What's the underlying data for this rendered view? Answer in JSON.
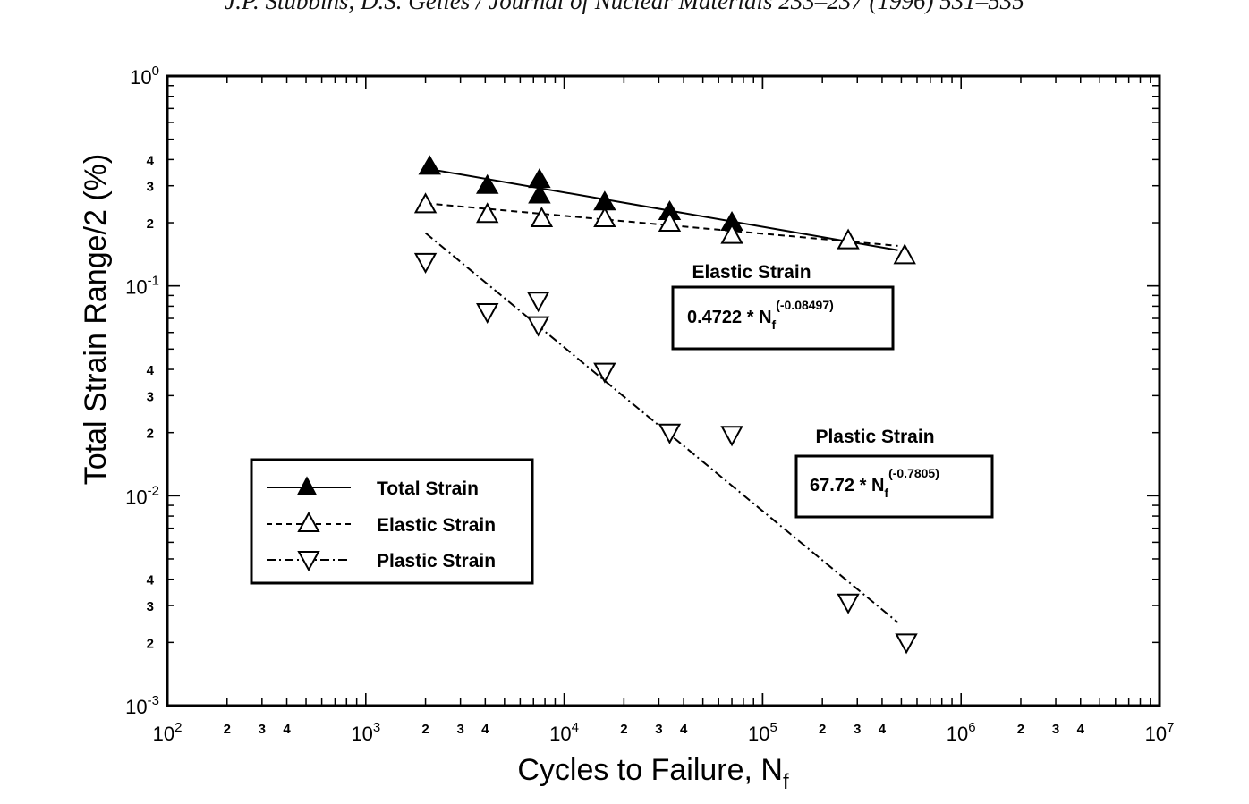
{
  "header": "J.P. Stubbins, D.S. Gelles / Journal of Nuclear Materials 233–237 (1996) 531–535",
  "chart_data": {
    "type": "scatter",
    "xlabel_main": "Cycles to Failure, N",
    "xlabel_sub": "f",
    "ylabel": "Total Strain Range/2 (%)",
    "xscale": "log",
    "yscale": "log",
    "xlim": [
      100,
      10000000
    ],
    "ylim": [
      0.001,
      1
    ],
    "x_major_ticks": [
      {
        "value": 100,
        "base": "10",
        "exp": "2"
      },
      {
        "value": 1000,
        "base": "10",
        "exp": "3"
      },
      {
        "value": 10000,
        "base": "10",
        "exp": "4"
      },
      {
        "value": 100000,
        "base": "10",
        "exp": "5"
      },
      {
        "value": 1000000,
        "base": "10",
        "exp": "6"
      },
      {
        "value": 10000000,
        "base": "10",
        "exp": "7"
      }
    ],
    "y_major_ticks": [
      {
        "value": 1,
        "base": "10",
        "exp": "0"
      },
      {
        "value": 0.1,
        "base": "10",
        "exp": "-1"
      },
      {
        "value": 0.01,
        "base": "10",
        "exp": "-2"
      },
      {
        "value": 0.001,
        "base": "10",
        "exp": "-3"
      }
    ],
    "minor_tick_labels": [
      "2",
      "3",
      "4"
    ],
    "series": [
      {
        "name": "Total Strain",
        "marker": "filled-triangle-up",
        "line": "solid",
        "points": [
          [
            2100,
            0.37
          ],
          [
            4100,
            0.3
          ],
          [
            7500,
            0.32
          ],
          [
            7500,
            0.27
          ],
          [
            16000,
            0.25
          ],
          [
            34000,
            0.225
          ],
          [
            70000,
            0.2
          ]
        ],
        "fit": [
          [
            2100,
            0.36
          ],
          [
            480000,
            0.148
          ]
        ]
      },
      {
        "name": "Elastic Strain",
        "marker": "open-triangle-up",
        "line": "dashed",
        "points": [
          [
            2000,
            0.245
          ],
          [
            4100,
            0.22
          ],
          [
            7700,
            0.21
          ],
          [
            16000,
            0.21
          ],
          [
            34000,
            0.2
          ],
          [
            70000,
            0.175
          ],
          [
            270000,
            0.165
          ],
          [
            520000,
            0.14
          ]
        ],
        "fit": [
          [
            2000,
            0.2474
          ],
          [
            480000,
            0.1552
          ]
        ]
      },
      {
        "name": "Plastic Strain",
        "marker": "open-triangle-down",
        "line": "dash-dot",
        "points": [
          [
            2000,
            0.13
          ],
          [
            4100,
            0.075
          ],
          [
            7400,
            0.085
          ],
          [
            7400,
            0.065
          ],
          [
            16000,
            0.039
          ],
          [
            34000,
            0.02
          ],
          [
            70000,
            0.0195
          ],
          [
            270000,
            0.0031
          ],
          [
            530000,
            0.002
          ]
        ],
        "fit": [
          [
            2000,
            0.1787
          ],
          [
            480000,
            0.00249
          ]
        ]
      }
    ],
    "legend": {
      "position": "lower-left",
      "entries": [
        "Total Strain",
        "Elastic Strain",
        "Plastic Strain"
      ]
    },
    "annotations": [
      {
        "title": "Elastic Strain",
        "formula_main": "0.4722 * N",
        "formula_sub": "f",
        "formula_exp": "(-0.08497)"
      },
      {
        "title": "Plastic Strain",
        "formula_main": "67.72 * N",
        "formula_sub": "f",
        "formula_exp": "(-0.7805)"
      }
    ]
  }
}
